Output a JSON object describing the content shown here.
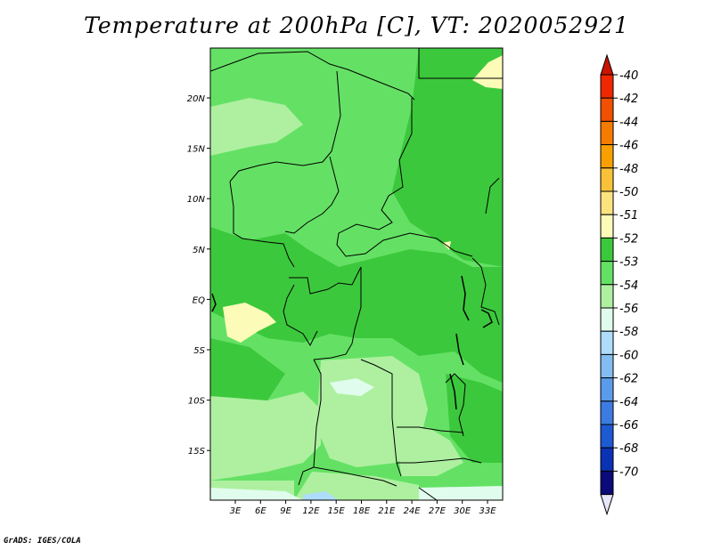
{
  "title": "Temperature at 200hPa [C], VT: 2020052921",
  "credit": "GrADS: IGES/COLA",
  "map": {
    "lat_labels": [
      "20N",
      "15N",
      "10N",
      "5N",
      "EQ",
      "5S",
      "10S",
      "15S"
    ],
    "lon_labels": [
      "3E",
      "6E",
      "9E",
      "12E",
      "15E",
      "18E",
      "21E",
      "24E",
      "27E",
      "30E",
      "33E"
    ]
  },
  "colorbar": {
    "levels": [
      "-40",
      "-42",
      "-44",
      "-46",
      "-48",
      "-50",
      "-51",
      "-52",
      "-53",
      "-54",
      "-56",
      "-58",
      "-60",
      "-62",
      "-64",
      "-66",
      "-68",
      "-70"
    ],
    "colors": [
      "#f02800",
      "#f05000",
      "#f57c00",
      "#f8a000",
      "#f7c23a",
      "#fbe47e",
      "#fdfbb8",
      "#3cc83c",
      "#64e164",
      "#aef0a0",
      "#e0fcec",
      "#aedcfa",
      "#82bcf0",
      "#5a9cea",
      "#3c7ce0",
      "#1e5ad2",
      "#0a32b4",
      "#0a0a78"
    ],
    "top_arrow_color": "#c81400",
    "bottom_arrow_color": "#e6e6fa"
  }
}
